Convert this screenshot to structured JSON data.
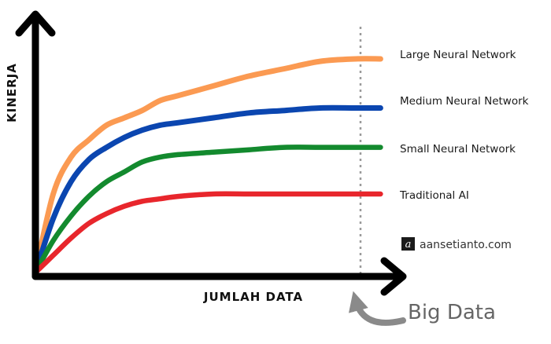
{
  "chart_data": {
    "type": "line",
    "xlabel": "JUMLAH DATA",
    "ylabel": "KINERJA",
    "xlim": [
      0,
      100
    ],
    "ylim": [
      0,
      100
    ],
    "grid": false,
    "legend": "right, inline at line ends",
    "series": [
      {
        "name": "Large Neural Network",
        "color": "#fb9a52",
        "x": [
          0,
          5,
          10,
          15,
          20,
          25,
          30,
          35,
          40,
          50,
          60,
          70,
          80,
          90,
          97
        ],
        "y": [
          0,
          32,
          47,
          54,
          60,
          63,
          66,
          70,
          72,
          76,
          80,
          83,
          86,
          87,
          87
        ]
      },
      {
        "name": "Medium Neural Network",
        "color": "#0b46b0",
        "x": [
          0,
          5,
          10,
          15,
          20,
          25,
          30,
          35,
          40,
          50,
          60,
          70,
          80,
          90,
          97
        ],
        "y": [
          0,
          22,
          37,
          46,
          51,
          55,
          58,
          60,
          61,
          63,
          65,
          66,
          67,
          67,
          67
        ]
      },
      {
        "name": "Small Neural Network",
        "color": "#138a2e",
        "x": [
          0,
          5,
          10,
          15,
          20,
          25,
          30,
          35,
          40,
          50,
          60,
          70,
          80,
          90,
          97
        ],
        "y": [
          0,
          13,
          23,
          31,
          37,
          41,
          45,
          47,
          48,
          49,
          50,
          51,
          51,
          51,
          51
        ]
      },
      {
        "name": "Traditional AI",
        "color": "#e8262c",
        "x": [
          0,
          5,
          10,
          15,
          20,
          25,
          30,
          35,
          40,
          50,
          60,
          70,
          80,
          90,
          97
        ],
        "y": [
          0,
          7,
          14,
          20,
          24,
          27,
          29,
          30,
          31,
          32,
          32,
          32,
          32,
          32,
          32
        ]
      }
    ],
    "annotations": [
      {
        "text": "Big Data",
        "x": 89,
        "style": "dotted vertical line with curved arrow"
      }
    ]
  },
  "watermark": {
    "glyph": "a",
    "text": "aansetianto.com"
  },
  "colors": {
    "axis": "#000000",
    "annotation": "#8a8a8a"
  }
}
